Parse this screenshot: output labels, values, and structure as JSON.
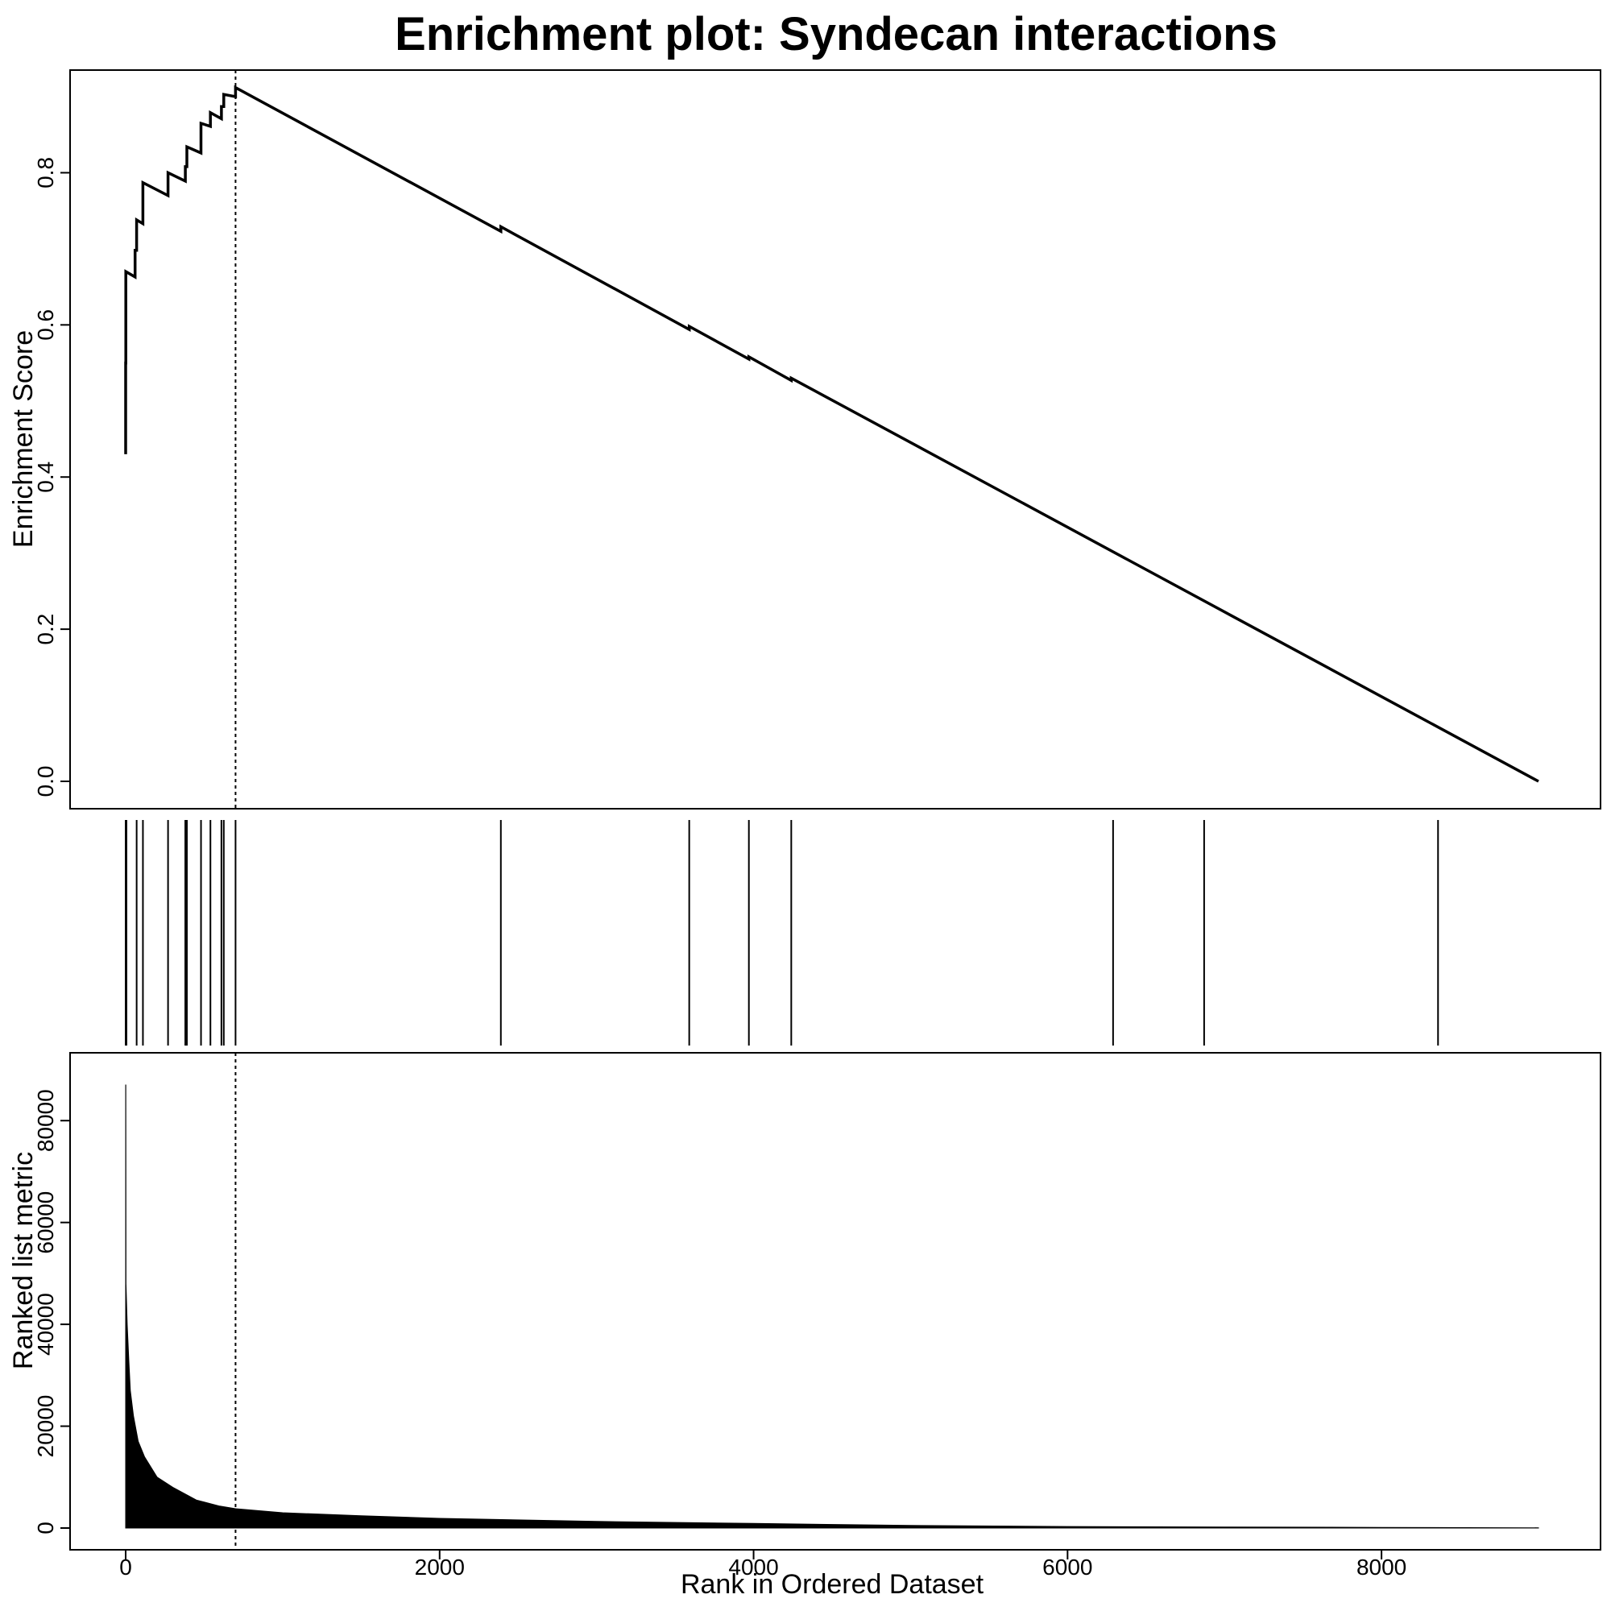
{
  "chart_data": {
    "title": "Enrichment plot: Syndecan interactions",
    "xlabel": "Rank in Ordered Dataset",
    "n_genes": 9000,
    "leading_edge_rank": 700,
    "xlim": [
      0,
      9000
    ],
    "xticks": [
      0,
      2000,
      4000,
      6000,
      8000
    ],
    "xtick_labels": [
      "0",
      "2000",
      "4000",
      "6000",
      "8000"
    ],
    "panels": [
      {
        "type": "line",
        "name": "enrichment-score",
        "ylabel": "Enrichment Score",
        "ylim": [
          0,
          0.9
        ],
        "yticks": [
          0,
          0.2,
          0.4,
          0.6,
          0.8
        ],
        "ytick_labels": [
          "0.0",
          "0.2",
          "0.4",
          "0.6",
          "0.8"
        ],
        "points": [
          [
            0,
            0.43
          ],
          [
            0,
            0.55
          ],
          [
            1,
            0.55
          ],
          [
            1,
            0.67
          ],
          [
            60,
            0.663
          ],
          [
            60,
            0.698
          ],
          [
            70,
            0.698
          ],
          [
            70,
            0.738
          ],
          [
            110,
            0.733
          ],
          [
            110,
            0.787
          ],
          [
            270,
            0.77
          ],
          [
            270,
            0.8
          ],
          [
            380,
            0.789
          ],
          [
            380,
            0.808
          ],
          [
            390,
            0.808
          ],
          [
            390,
            0.834
          ],
          [
            480,
            0.826
          ],
          [
            480,
            0.865
          ],
          [
            540,
            0.861
          ],
          [
            540,
            0.879
          ],
          [
            610,
            0.871
          ],
          [
            610,
            0.887
          ],
          [
            625,
            0.887
          ],
          [
            625,
            0.903
          ],
          [
            700,
            0.9
          ],
          [
            700,
            0.912
          ],
          [
            2390,
            0.723
          ],
          [
            2390,
            0.729
          ],
          [
            3590,
            0.594
          ],
          [
            3590,
            0.598
          ],
          [
            3970,
            0.555
          ],
          [
            3970,
            0.558
          ],
          [
            4240,
            0.527
          ],
          [
            4240,
            0.53
          ],
          [
            9000,
            0.0
          ]
        ]
      },
      {
        "type": "rug",
        "name": "gene-set-hits",
        "hits": [
          0,
          5,
          70,
          110,
          270,
          380,
          390,
          480,
          540,
          610,
          625,
          700,
          2390,
          3590,
          3970,
          4240,
          6290,
          6870,
          8360
        ]
      },
      {
        "type": "area",
        "name": "ranked-list-metric",
        "ylabel": "Ranked list metric",
        "ylim": [
          0,
          90000
        ],
        "yticks": [
          0,
          20000,
          40000,
          60000,
          80000
        ],
        "ytick_labels": [
          "0",
          "20000",
          "40000",
          "60000",
          "80000"
        ],
        "points": [
          [
            0,
            87000
          ],
          [
            1,
            87000
          ],
          [
            2,
            48000
          ],
          [
            10,
            40000
          ],
          [
            20,
            33000
          ],
          [
            30,
            27000
          ],
          [
            50,
            22000
          ],
          [
            80,
            17000
          ],
          [
            120,
            14000
          ],
          [
            200,
            10000
          ],
          [
            300,
            8000
          ],
          [
            450,
            5500
          ],
          [
            600,
            4300
          ],
          [
            700,
            3800
          ],
          [
            1000,
            3000
          ],
          [
            1500,
            2400
          ],
          [
            2000,
            1900
          ],
          [
            3000,
            1300
          ],
          [
            4000,
            900
          ],
          [
            5000,
            500
          ],
          [
            6000,
            300
          ],
          [
            7000,
            200
          ],
          [
            8000,
            120
          ],
          [
            9000,
            50
          ]
        ]
      }
    ]
  }
}
